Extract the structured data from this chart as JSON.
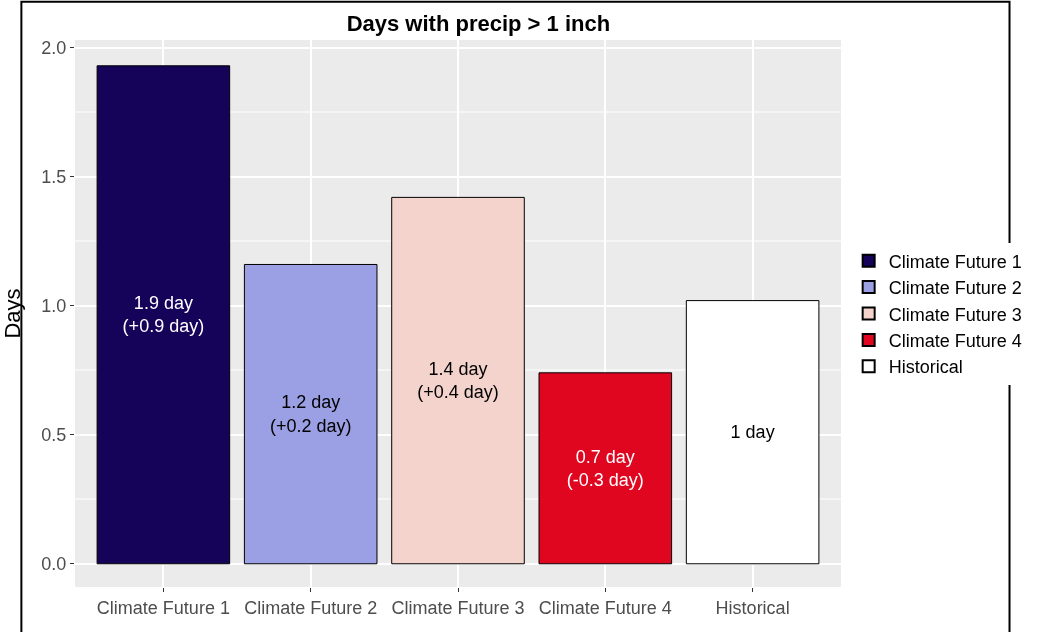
{
  "chart_data": {
    "type": "bar",
    "title": "Days with precip > 1 inch",
    "ylabel": "Days",
    "categories": [
      "Climate Future 1",
      "Climate Future 2",
      "Climate Future 3",
      "Climate Future 4",
      "Historical"
    ],
    "series": [
      {
        "name": "Climate Future 1",
        "color": "#140359",
        "values": [
          1.93,
          null,
          null,
          null,
          null
        ],
        "value_labels": [
          "1.9 day\n(+0.9 day)",
          null,
          null,
          null,
          null
        ]
      },
      {
        "name": "Climate Future 2",
        "color": "#9b9fe3",
        "values": [
          null,
          1.16,
          null,
          null,
          null
        ],
        "value_labels": [
          null,
          "1.2 day\n(+0.2 day)",
          null,
          null,
          null
        ]
      },
      {
        "name": "Climate Future 3",
        "color": "#f3d3cb",
        "values": [
          null,
          null,
          1.42,
          null,
          null
        ],
        "value_labels": [
          null,
          null,
          "1.4 day\n(+0.4 day)",
          null,
          null
        ]
      },
      {
        "name": "Climate Future 4",
        "color": "#e10620",
        "values": [
          null,
          null,
          null,
          0.74,
          null
        ],
        "value_labels": [
          null,
          null,
          null,
          "0.7 day\n(-0.3 day)",
          null
        ]
      },
      {
        "name": "Historical",
        "color": "#ffffff",
        "values": [
          null,
          null,
          null,
          null,
          1.02
        ],
        "value_labels": [
          null,
          null,
          null,
          null,
          "1 day"
        ]
      }
    ],
    "ylim": [
      -0.09,
      2.03
    ],
    "yticks": [
      {
        "value": 0,
        "label": "0.0"
      },
      {
        "value": 0.5,
        "label": "0.5"
      },
      {
        "value": 1,
        "label": "1.0"
      },
      {
        "value": 1.5,
        "label": "1.5"
      },
      {
        "value": 2,
        "label": "2.0"
      }
    ],
    "grid": true,
    "legend": "right"
  }
}
